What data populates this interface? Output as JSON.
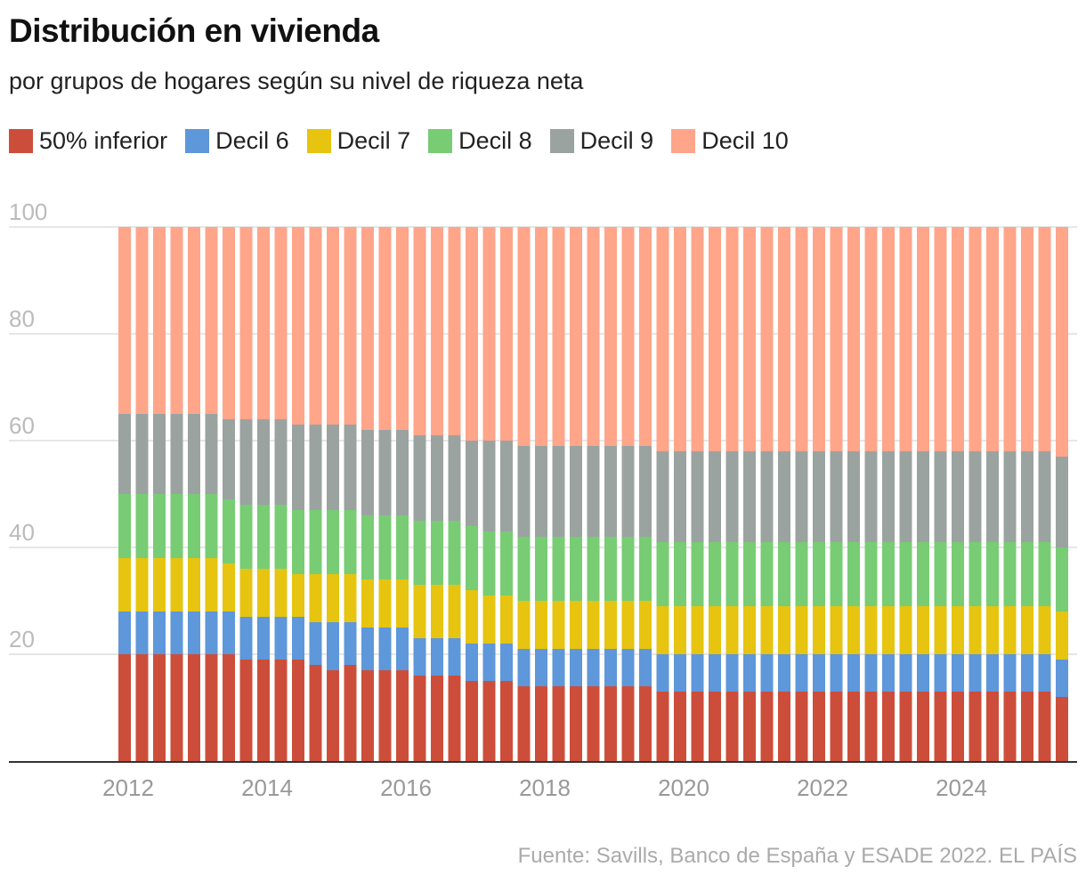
{
  "chart_data": {
    "type": "bar",
    "stacked": true,
    "title": "Distribución en vivienda",
    "subtitle": "por grupos de hogares según su nivel de riqueza neta",
    "source": "Fuente: Savills, Banco de España y ESADE 2022. EL PAÍS",
    "ylim": [
      0,
      100
    ],
    "yticks": [
      20,
      40,
      60,
      80,
      100
    ],
    "xtick_labels": [
      "2012",
      "2014",
      "2016",
      "2018",
      "2020",
      "2022",
      "2024"
    ],
    "grid": true,
    "legend_position": "top-left",
    "categories": [
      "2012 Q1",
      "2012 Q2",
      "2012 Q3",
      "2012 Q4",
      "2013 Q1",
      "2013 Q2",
      "2013 Q3",
      "2013 Q4",
      "2014 Q1",
      "2014 Q2",
      "2014 Q3",
      "2014 Q4",
      "2015 Q1",
      "2015 Q2",
      "2015 Q3",
      "2015 Q4",
      "2016 Q1",
      "2016 Q2",
      "2016 Q3",
      "2016 Q4",
      "2017 Q1",
      "2017 Q2",
      "2017 Q3",
      "2017 Q4",
      "2018 Q1",
      "2018 Q2",
      "2018 Q3",
      "2018 Q4",
      "2019 Q1",
      "2019 Q2",
      "2019 Q3",
      "2019 Q4",
      "2020 Q1",
      "2020 Q2",
      "2020 Q3",
      "2020 Q4",
      "2021 Q1",
      "2021 Q2",
      "2021 Q3",
      "2021 Q4",
      "2022 Q1",
      "2022 Q2",
      "2022 Q3",
      "2022 Q4",
      "2023 Q1",
      "2023 Q2",
      "2023 Q3",
      "2023 Q4",
      "2024 Q1",
      "2024 Q2",
      "2024 Q3",
      "2024 Q4",
      "2025 Q1",
      "2025 Q2",
      "2025 Q3"
    ],
    "series": [
      {
        "name": "50% inferior",
        "color": "#cc4e3a",
        "values": [
          20,
          20,
          20,
          20,
          20,
          20,
          20,
          19,
          19,
          19,
          19,
          18,
          17,
          18,
          17,
          17,
          17,
          16,
          16,
          16,
          15,
          15,
          15,
          14,
          14,
          14,
          14,
          14,
          14,
          14,
          14,
          13,
          13,
          13,
          13,
          13,
          13,
          13,
          13,
          13,
          13,
          13,
          13,
          13,
          13,
          13,
          13,
          13,
          13,
          13,
          13,
          13,
          13,
          13,
          12
        ]
      },
      {
        "name": "Decil 6",
        "color": "#5e97da",
        "values": [
          8,
          8,
          8,
          8,
          8,
          8,
          8,
          8,
          8,
          8,
          8,
          8,
          9,
          8,
          8,
          8,
          8,
          7,
          7,
          7,
          7,
          7,
          7,
          7,
          7,
          7,
          7,
          7,
          7,
          7,
          7,
          7,
          7,
          7,
          7,
          7,
          7,
          7,
          7,
          7,
          7,
          7,
          7,
          7,
          7,
          7,
          7,
          7,
          7,
          7,
          7,
          7,
          7,
          7,
          7
        ]
      },
      {
        "name": "Decil 7",
        "color": "#e6c410",
        "values": [
          10,
          10,
          10,
          10,
          10,
          10,
          9,
          9,
          9,
          9,
          8,
          9,
          9,
          9,
          9,
          9,
          9,
          10,
          10,
          10,
          10,
          9,
          9,
          9,
          9,
          9,
          9,
          9,
          9,
          9,
          9,
          9,
          9,
          9,
          9,
          9,
          9,
          9,
          9,
          9,
          9,
          9,
          9,
          9,
          9,
          9,
          9,
          9,
          9,
          9,
          9,
          9,
          9,
          9,
          9
        ]
      },
      {
        "name": "Decil 8",
        "color": "#78cc74",
        "values": [
          12,
          12,
          12,
          12,
          12,
          12,
          12,
          12,
          12,
          12,
          12,
          12,
          12,
          12,
          12,
          12,
          12,
          12,
          12,
          12,
          12,
          12,
          12,
          12,
          12,
          12,
          12,
          12,
          12,
          12,
          12,
          12,
          12,
          12,
          12,
          12,
          12,
          12,
          12,
          12,
          12,
          12,
          12,
          12,
          12,
          12,
          12,
          12,
          12,
          12,
          12,
          12,
          12,
          12,
          12
        ]
      },
      {
        "name": "Decil 9",
        "color": "#9ba3a1",
        "values": [
          15,
          15,
          15,
          15,
          15,
          15,
          15,
          16,
          16,
          16,
          16,
          16,
          16,
          16,
          16,
          16,
          16,
          16,
          16,
          16,
          16,
          17,
          17,
          17,
          17,
          17,
          17,
          17,
          17,
          17,
          17,
          17,
          17,
          17,
          17,
          17,
          17,
          17,
          17,
          17,
          17,
          17,
          17,
          17,
          17,
          17,
          17,
          17,
          17,
          17,
          17,
          17,
          17,
          17,
          17
        ]
      },
      {
        "name": "Decil 10",
        "color": "#ffa58a",
        "values": [
          35,
          35,
          35,
          35,
          35,
          35,
          36,
          36,
          36,
          36,
          37,
          37,
          37,
          37,
          38,
          38,
          38,
          39,
          39,
          39,
          40,
          40,
          40,
          41,
          41,
          41,
          41,
          41,
          41,
          41,
          41,
          42,
          42,
          42,
          42,
          42,
          42,
          42,
          42,
          42,
          42,
          42,
          42,
          42,
          42,
          42,
          42,
          42,
          42,
          42,
          42,
          42,
          42,
          42,
          43
        ]
      }
    ]
  }
}
